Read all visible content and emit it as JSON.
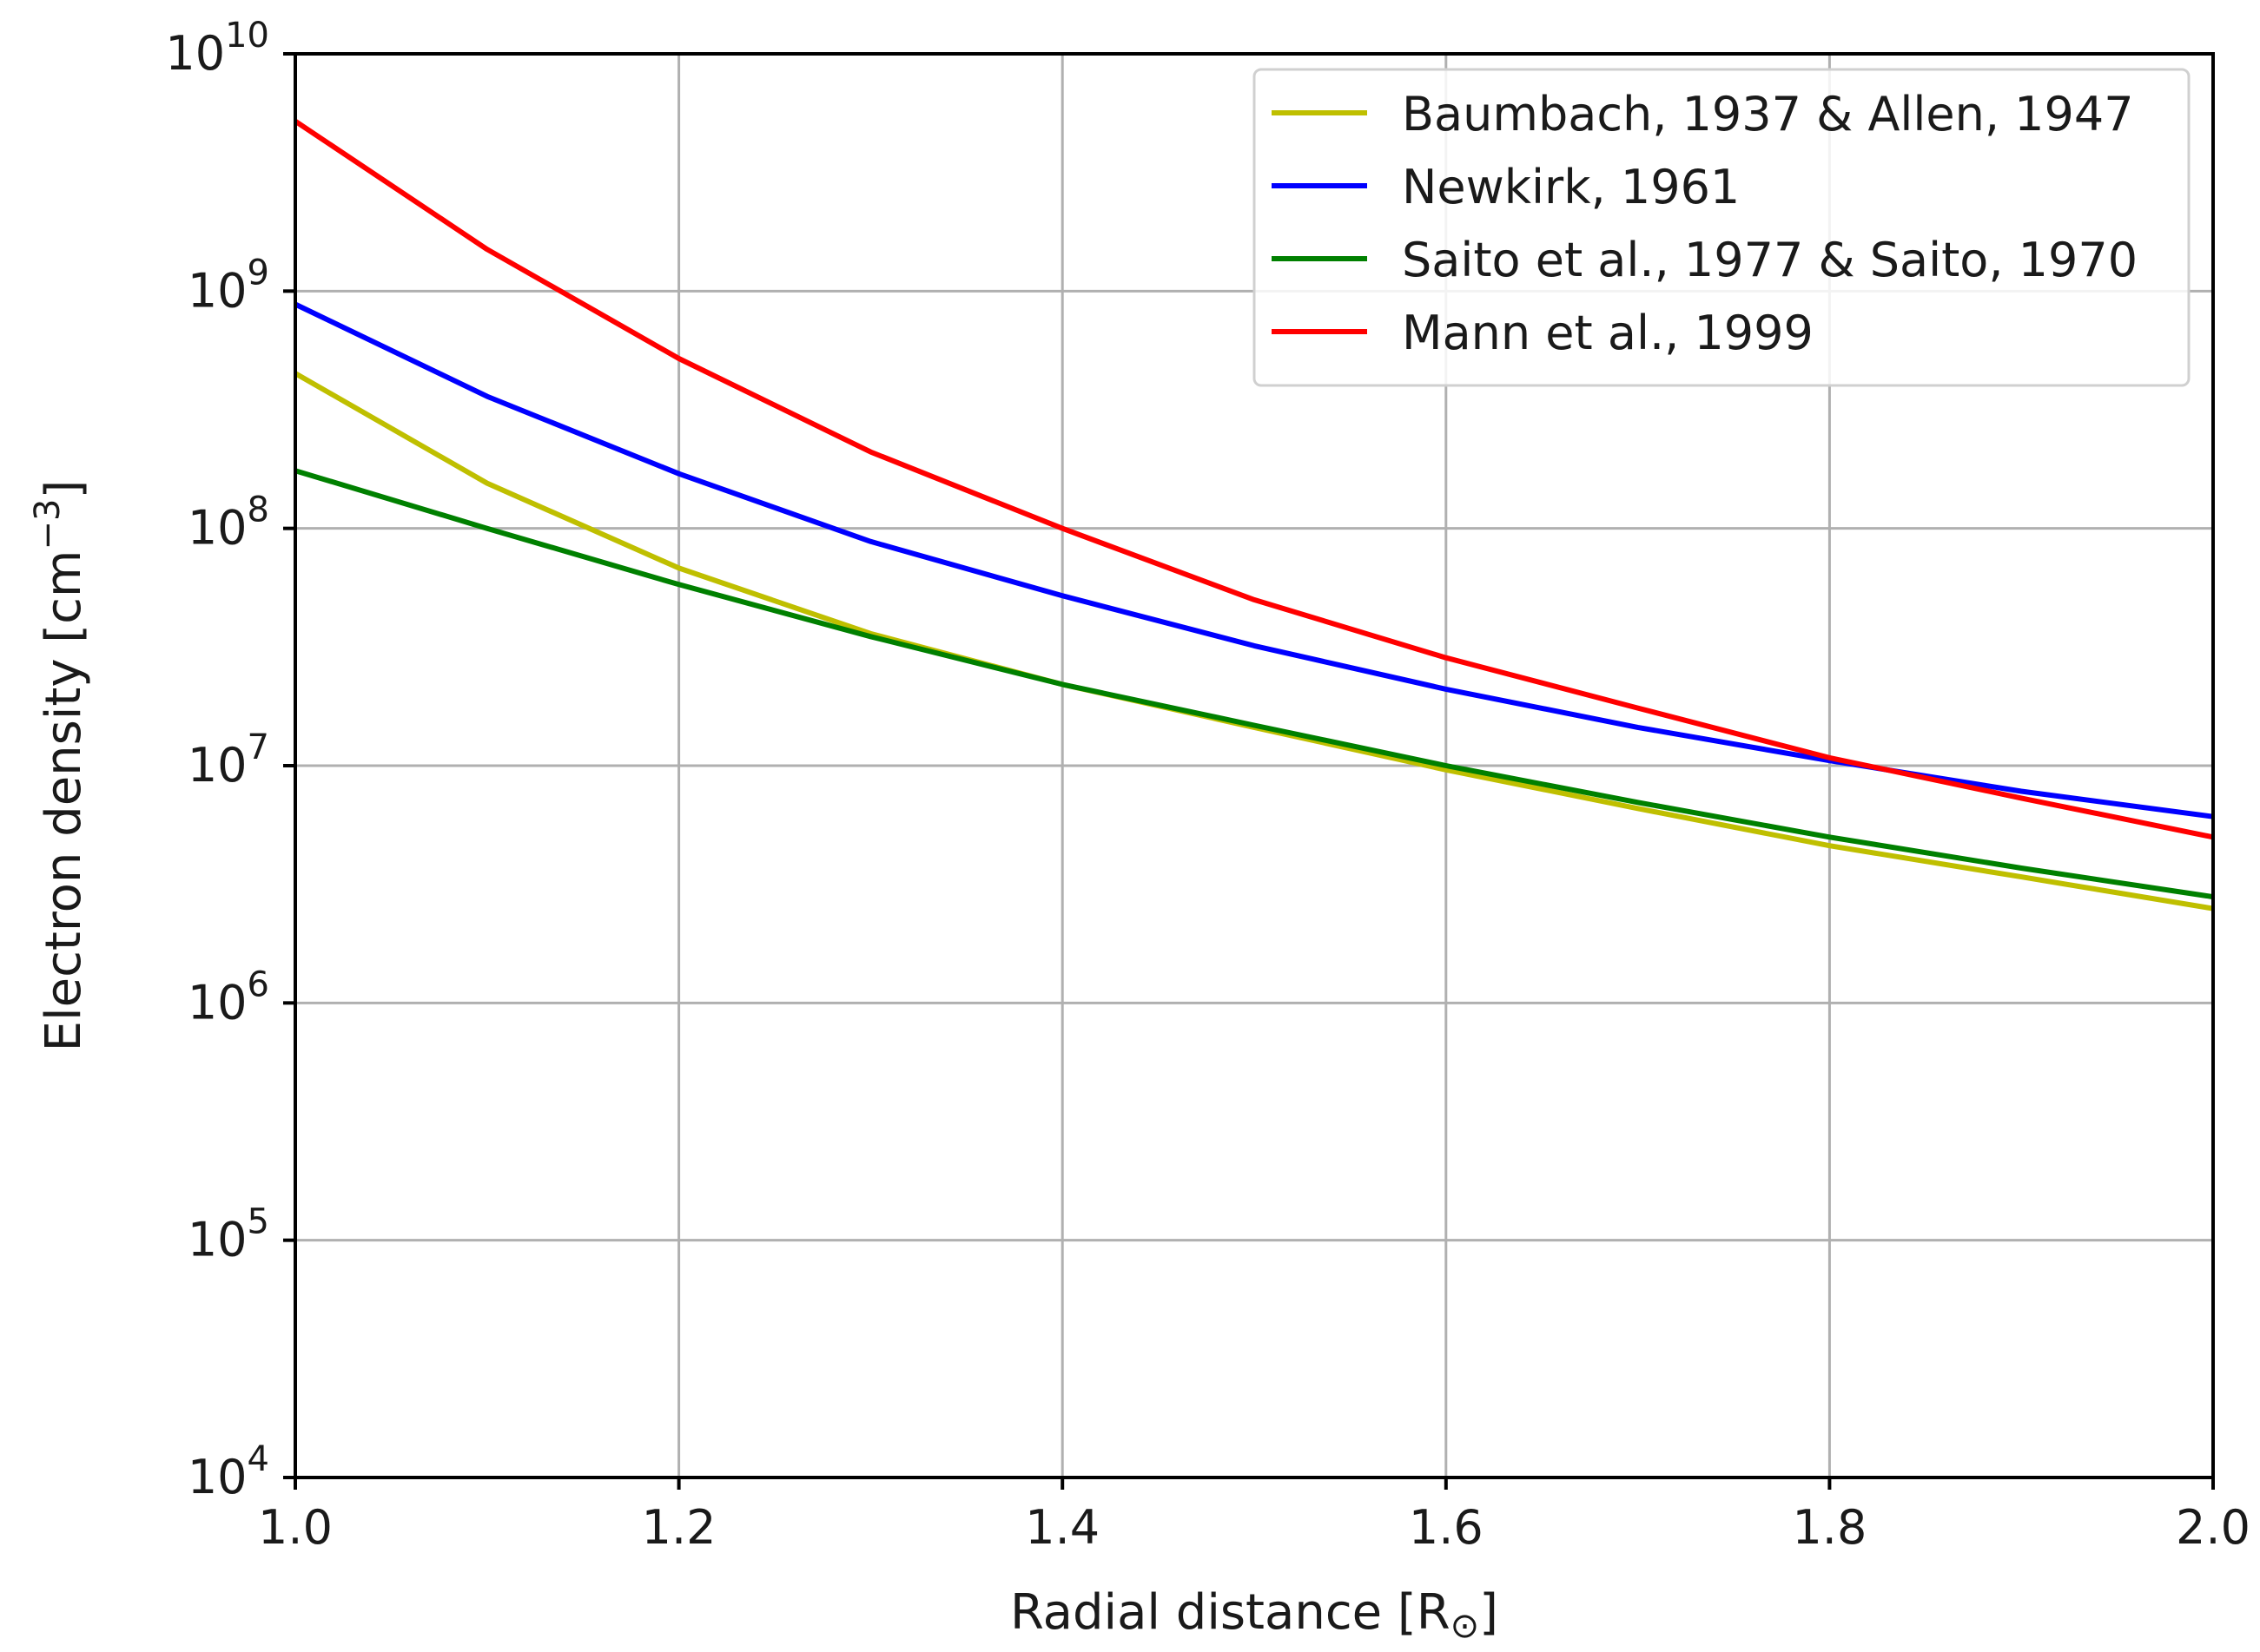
{
  "chart_data": {
    "type": "line",
    "title": "",
    "xlabel": "Radial distance [R",
    "xlabel_symbol": "⊙",
    "xlabel_suffix": "]",
    "ylabel": "Electron density [cm",
    "ylabel_exponent": "−3",
    "ylabel_suffix": "]",
    "xlim": [
      1.0,
      2.0
    ],
    "ylim": [
      10000,
      10000000000
    ],
    "yscale": "log",
    "grid": true,
    "legend_position": "top-right",
    "x_ticks": [
      {
        "value": 1.0,
        "label": "1.0"
      },
      {
        "value": 1.2,
        "label": "1.2"
      },
      {
        "value": 1.4,
        "label": "1.4"
      },
      {
        "value": 1.6,
        "label": "1.6"
      },
      {
        "value": 1.8,
        "label": "1.8"
      },
      {
        "value": 2.0,
        "label": "2.0"
      }
    ],
    "y_ticks": [
      {
        "value": 10000,
        "base": "10",
        "exponent": "4"
      },
      {
        "value": 100000,
        "base": "10",
        "exponent": "5"
      },
      {
        "value": 1000000,
        "base": "10",
        "exponent": "6"
      },
      {
        "value": 10000000,
        "base": "10",
        "exponent": "7"
      },
      {
        "value": 100000000,
        "base": "10",
        "exponent": "8"
      },
      {
        "value": 1000000000,
        "base": "10",
        "exponent": "9"
      },
      {
        "value": 10000000000,
        "base": "10",
        "exponent": "10"
      }
    ],
    "x": [
      1.0,
      1.1,
      1.2,
      1.3,
      1.4,
      1.5,
      1.6,
      1.7,
      1.8,
      1.9,
      2.0
    ],
    "series": [
      {
        "name": "Baumbach, 1937 & Allen, 1947",
        "color": "#bfbf00",
        "values": [
          450000000,
          155000000,
          68000000,
          36000000,
          22000000,
          14500000,
          9600000,
          6600000,
          4600000,
          3400000,
          2500000
        ]
      },
      {
        "name": "Newkirk, 1961",
        "color": "#0000ff",
        "values": [
          880000000,
          360000000,
          170000000,
          88000000,
          52000000,
          32000000,
          21000000,
          14500000,
          10500000,
          7800000,
          6100000
        ]
      },
      {
        "name": "Saito et al., 1977 & Saito, 1970",
        "color": "#008000",
        "values": [
          175000000,
          100000000,
          58000000,
          35000000,
          22000000,
          14800000,
          10000000,
          7000000,
          5000000,
          3700000,
          2800000
        ]
      },
      {
        "name": "Mann et al., 1999",
        "color": "#ff0000",
        "values": [
          5200000000,
          1500000000,
          520000000,
          210000000,
          100000000,
          50000000,
          28500000,
          17500000,
          10800000,
          7300000,
          5000000
        ]
      }
    ]
  }
}
